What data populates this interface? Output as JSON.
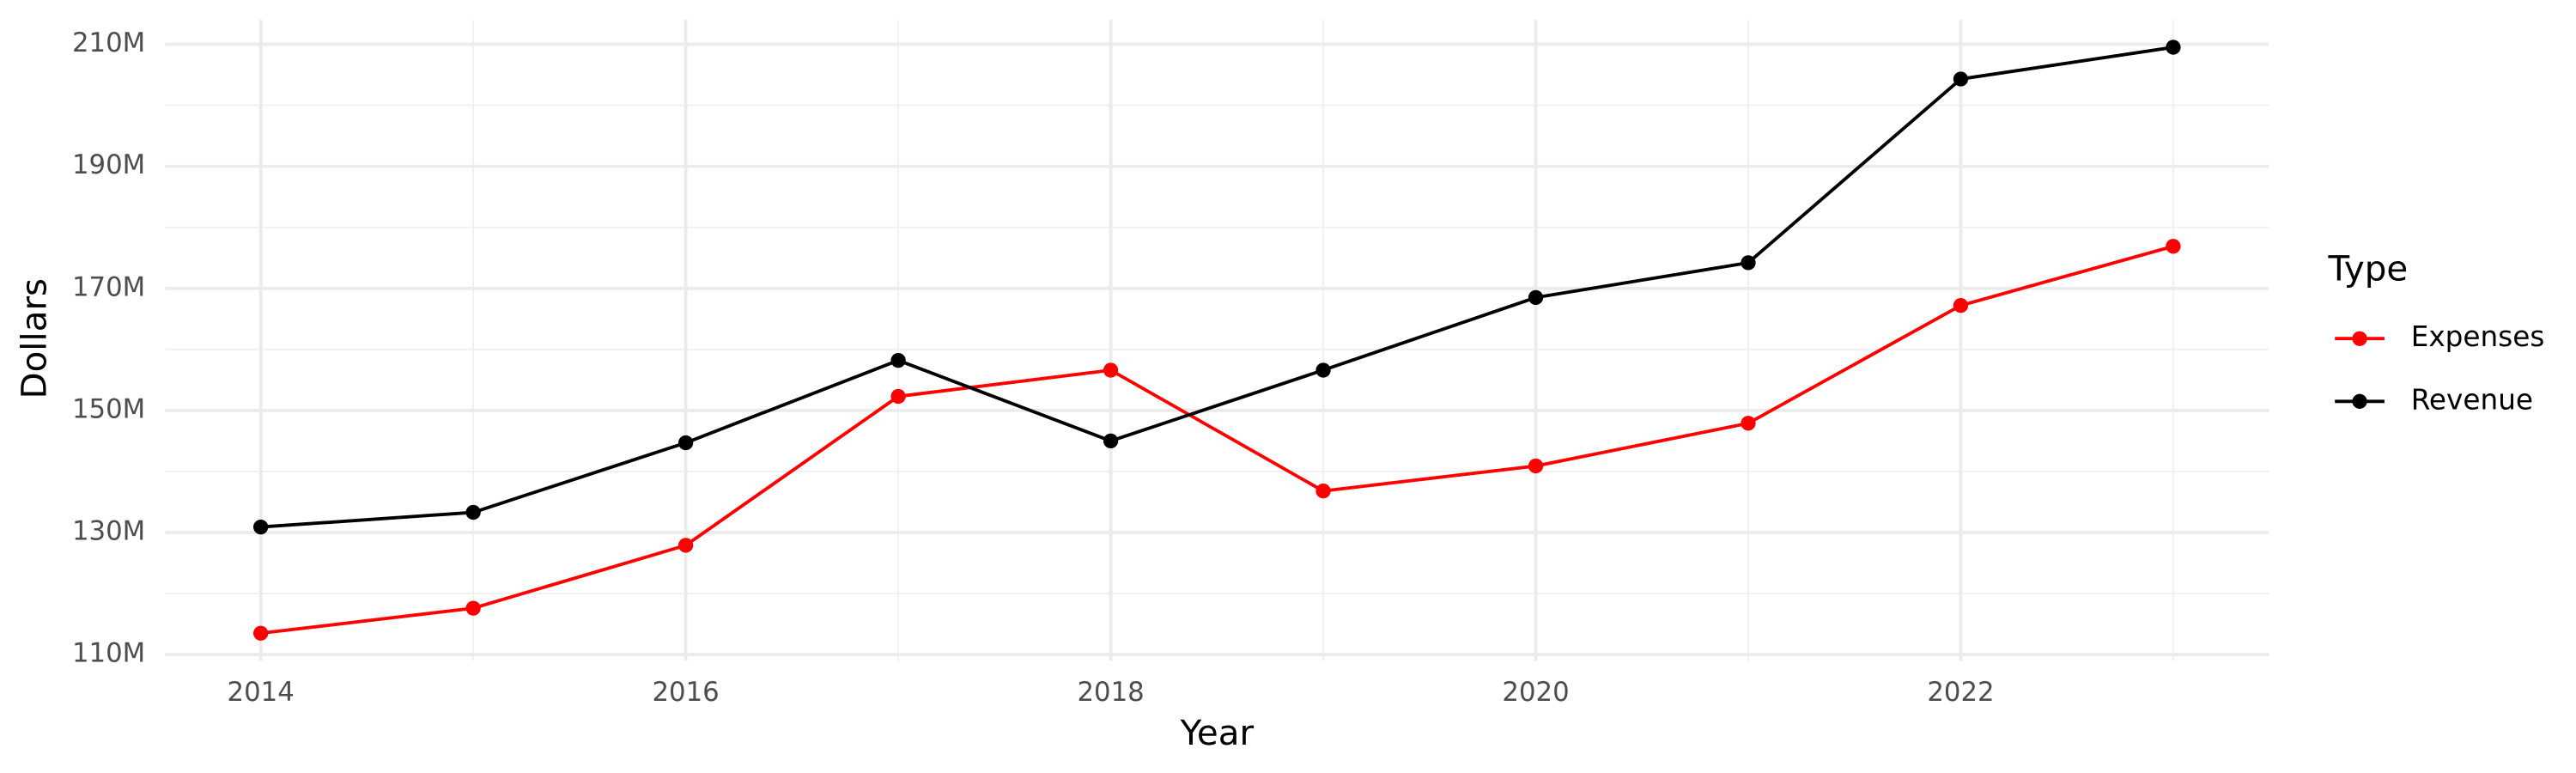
{
  "chart_data": {
    "type": "line",
    "x_label": "Year",
    "y_label": "Dollars",
    "legend_title": "Type",
    "x": [
      2014,
      2015,
      2016,
      2017,
      2018,
      2019,
      2020,
      2021,
      2022,
      2023
    ],
    "series": [
      {
        "name": "Expenses",
        "color": "#ff0000",
        "values": [
          113500000,
          117600000,
          127900000,
          152300000,
          156600000,
          136800000,
          140900000,
          147900000,
          167200000,
          176900000
        ]
      },
      {
        "name": "Revenue",
        "color": "#000000",
        "values": [
          130900000,
          133300000,
          144700000,
          158200000,
          145000000,
          156600000,
          168500000,
          174200000,
          204300000,
          209500000
        ]
      }
    ],
    "xlim": [
      2013.55,
      2023.45
    ],
    "xticks": [
      2014,
      2016,
      2018,
      2020,
      2022
    ],
    "ylim": [
      109000000,
      214000000
    ],
    "yticks": [
      {
        "value": 110000000,
        "label": "110M"
      },
      {
        "value": 130000000,
        "label": "130M"
      },
      {
        "value": 150000000,
        "label": "150M"
      },
      {
        "value": 170000000,
        "label": "170M"
      },
      {
        "value": 190000000,
        "label": "190M"
      },
      {
        "value": 210000000,
        "label": "210M"
      }
    ],
    "grid": true,
    "legend": "right"
  }
}
